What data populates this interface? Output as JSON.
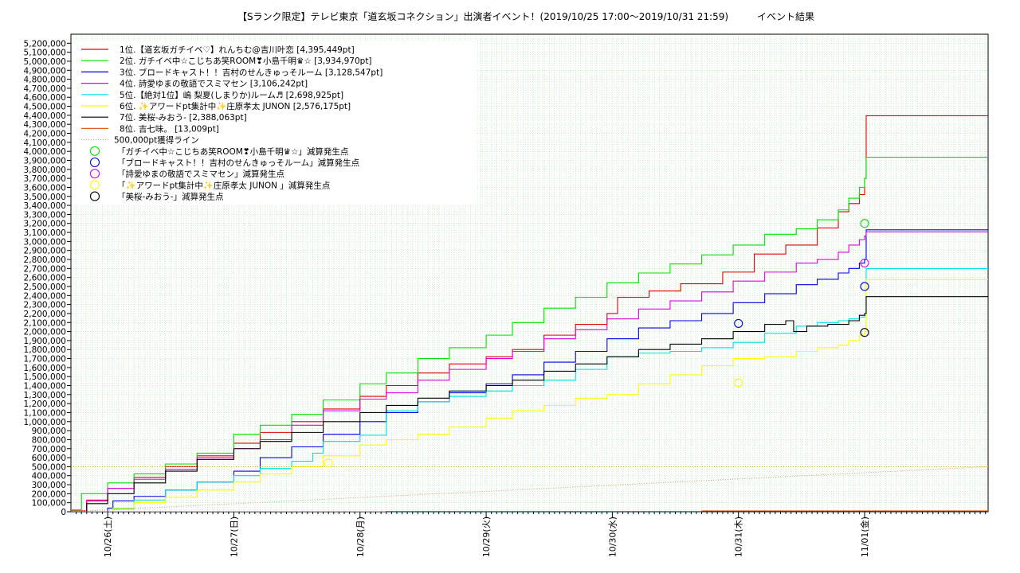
{
  "chart_data": {
    "type": "line",
    "title": "【Sランク限定】テレビ東京「道玄坂コネクション」出演者イベント！(2019/10/25 17:00～2019/10/31 21:59)　　　イベント結果",
    "xlabel": "",
    "ylabel": "",
    "x_unit": "hours since 2019/10/25 17:00",
    "xlim": [
      0,
      174.5
    ],
    "ylim": [
      0,
      5300000
    ],
    "y_ticks": [
      0,
      100000,
      200000,
      300000,
      400000,
      500000,
      600000,
      700000,
      800000,
      900000,
      1000000,
      1100000,
      1200000,
      1300000,
      1400000,
      1500000,
      1600000,
      1700000,
      1800000,
      1900000,
      2000000,
      2100000,
      2200000,
      2300000,
      2400000,
      2500000,
      2600000,
      2700000,
      2800000,
      2900000,
      3000000,
      3100000,
      3200000,
      3300000,
      3400000,
      3500000,
      3600000,
      3700000,
      3800000,
      3900000,
      4000000,
      4100000,
      4200000,
      4300000,
      4400000,
      4500000,
      4600000,
      4700000,
      4800000,
      4900000,
      5000000,
      5100000,
      5200000
    ],
    "y_tick_labels": [
      "0",
      "100,000",
      "200,000",
      "300,000",
      "400,000",
      "500,000",
      "600,000",
      "700,000",
      "800,000",
      "900,000",
      "1,000,000",
      "1,100,000",
      "1,200,000",
      "1,300,000",
      "1,400,000",
      "1,500,000",
      "1,600,000",
      "1,700,000",
      "1,800,000",
      "1,900,000",
      "2,000,000",
      "2,100,000",
      "2,200,000",
      "2,300,000",
      "2,400,000",
      "2,500,000",
      "2,600,000",
      "2,700,000",
      "2,800,000",
      "2,900,000",
      "3,000,000",
      "3,100,000",
      "3,200,000",
      "3,300,000",
      "3,400,000",
      "3,500,000",
      "3,600,000",
      "3,700,000",
      "3,800,000",
      "3,900,000",
      "4,000,000",
      "4,100,000",
      "4,200,000",
      "4,300,000",
      "4,400,000",
      "4,500,000",
      "4,600,000",
      "4,700,000",
      "4,800,000",
      "4,900,000",
      "5,000,000",
      "5,100,000",
      "5,200,000"
    ],
    "x_ticks": [
      7,
      31,
      55,
      79,
      103,
      127,
      151
    ],
    "x_tick_labels": [
      "10/26(土)",
      "10/27(日)",
      "10/28(月)",
      "10/29(火)",
      "10/30(水)",
      "10/31(木)",
      "11/01(金)"
    ],
    "grid": true,
    "legend_position": "top-left",
    "series": [
      {
        "name": "1位.【道玄坂ガチイベ♡】れんちむ@吉川叶恋 [4,395,449pt]",
        "color": "#e00000",
        "x": [
          0,
          3,
          7,
          12,
          18,
          24,
          31,
          36,
          42,
          48,
          55,
          60,
          66,
          72,
          79,
          84,
          90,
          96,
          102,
          104,
          110,
          116,
          124,
          130,
          136,
          142,
          146,
          148,
          150,
          151,
          151.3,
          174.5
        ],
        "y": [
          10000,
          120000,
          260000,
          380000,
          500000,
          620000,
          760000,
          880000,
          1000000,
          1140000,
          1280000,
          1400000,
          1540000,
          1640000,
          1720000,
          1800000,
          1960000,
          2080000,
          2200000,
          2380000,
          2450000,
          2530000,
          2660000,
          2860000,
          2960000,
          3150000,
          3330000,
          3420000,
          3520000,
          3700000,
          4395449,
          4395449
        ]
      },
      {
        "name": "2位. ガチイベ中☆こじちあ笑ROOM❣小島千明♛☆ [3,934,970pt]",
        "color": "#00e000",
        "x": [
          0,
          2,
          7,
          12,
          18,
          24,
          31,
          36,
          42,
          48,
          55,
          60,
          66,
          72,
          79,
          84,
          90,
          96,
          102,
          108,
          114,
          120,
          126,
          132,
          138,
          142,
          146,
          148,
          150,
          151,
          151.3,
          174.5
        ],
        "y": [
          20000,
          200000,
          320000,
          420000,
          530000,
          650000,
          860000,
          960000,
          1080000,
          1240000,
          1420000,
          1540000,
          1700000,
          1820000,
          1960000,
          2100000,
          2260000,
          2380000,
          2540000,
          2650000,
          2750000,
          2850000,
          2960000,
          3080000,
          3140000,
          3240000,
          3350000,
          3480000,
          3600000,
          3700000,
          3934970,
          3934970
        ]
      },
      {
        "name": "3位. ブロードキャスト！！吉村のせんきゅっそルーム [3,128,547pt]",
        "color": "#0000e0",
        "x": [
          0,
          7,
          8,
          12,
          18,
          24,
          31,
          36,
          42,
          48,
          55,
          60,
          66,
          72,
          79,
          84,
          90,
          96,
          102,
          108,
          114,
          120,
          126,
          132,
          138,
          142,
          146,
          148,
          150,
          151,
          151.3,
          174.5
        ],
        "y": [
          0,
          40000,
          120000,
          170000,
          240000,
          330000,
          450000,
          600000,
          720000,
          860000,
          1000000,
          1100000,
          1220000,
          1320000,
          1420000,
          1520000,
          1660000,
          1780000,
          1920000,
          2040000,
          2120000,
          2200000,
          2320000,
          2420000,
          2520000,
          2580000,
          2650000,
          2700000,
          2760000,
          2800000,
          3128547,
          3128547
        ]
      },
      {
        "name": "4位. 詩愛ゆまの敬語でスミマセン [3,106,242pt]",
        "color": "#e000e0",
        "x": [
          0,
          3,
          7,
          12,
          18,
          24,
          31,
          36,
          42,
          48,
          55,
          60,
          66,
          72,
          79,
          84,
          90,
          96,
          102,
          108,
          114,
          120,
          126,
          132,
          138,
          142,
          146,
          148,
          150,
          151,
          151.3,
          174.5
        ],
        "y": [
          0,
          130000,
          260000,
          360000,
          470000,
          600000,
          700000,
          800000,
          960000,
          1120000,
          1250000,
          1320000,
          1460000,
          1580000,
          1700000,
          1780000,
          1920000,
          2020000,
          2140000,
          2250000,
          2340000,
          2440000,
          2560000,
          2660000,
          2760000,
          2800000,
          2880000,
          2960000,
          3020000,
          3060000,
          3106242,
          3106242
        ]
      },
      {
        "name": "5位.【絶対1位】嶋 梨夏(しまりか)ルーム♬ [2,698,925pt]",
        "color": "#00e0e0",
        "x": [
          0,
          8,
          12,
          18,
          24,
          31,
          36,
          42,
          46,
          48,
          55,
          60,
          66,
          72,
          79,
          84,
          90,
          96,
          102,
          108,
          114,
          120,
          126,
          132,
          138,
          142,
          146,
          148,
          150,
          151,
          151.3,
          174.5
        ],
        "y": [
          0,
          30000,
          130000,
          240000,
          330000,
          400000,
          480000,
          560000,
          650000,
          780000,
          850000,
          1120000,
          1220000,
          1280000,
          1340000,
          1400000,
          1460000,
          1580000,
          1720000,
          1760000,
          1780000,
          1820000,
          1880000,
          1980000,
          2060000,
          2100000,
          2120000,
          2140000,
          2160000,
          2180000,
          2698925,
          2698925
        ]
      },
      {
        "name": "6位. ✨アワードpt集計中✨庄原孝太 JUNON [2,576,175pt]",
        "color": "#ffff00",
        "x": [
          0,
          8,
          12,
          18,
          24,
          31,
          36,
          42,
          48,
          55,
          60,
          66,
          72,
          79,
          84,
          90,
          96,
          102,
          108,
          114,
          120,
          126,
          132,
          138,
          142,
          146,
          148,
          150,
          151,
          151.3,
          174.5
        ],
        "y": [
          0,
          40000,
          100000,
          160000,
          240000,
          330000,
          420000,
          500000,
          620000,
          740000,
          800000,
          860000,
          940000,
          1040000,
          1120000,
          1180000,
          1260000,
          1300000,
          1420000,
          1520000,
          1620000,
          1700000,
          1720000,
          1780000,
          1820000,
          1850000,
          1900000,
          1960000,
          2000000,
          2576175,
          2576175
        ]
      },
      {
        "name": "7位. 美桜-みおう- [2,388,063pt]",
        "color": "#000000",
        "x": [
          0,
          3,
          7,
          12,
          18,
          24,
          31,
          36,
          42,
          48,
          55,
          60,
          66,
          72,
          79,
          84,
          90,
          96,
          102,
          108,
          114,
          120,
          126,
          132,
          136,
          137.5,
          140,
          144,
          148,
          150,
          151,
          151.3,
          174.5
        ],
        "y": [
          0,
          90000,
          200000,
          320000,
          450000,
          580000,
          700000,
          780000,
          880000,
          1000000,
          1100000,
          1180000,
          1260000,
          1340000,
          1400000,
          1460000,
          1560000,
          1640000,
          1720000,
          1800000,
          1860000,
          1920000,
          2000000,
          2080000,
          2120000,
          2000000,
          2060000,
          2080000,
          2120000,
          2180000,
          2200000,
          2388063,
          2388063
        ]
      },
      {
        "name": "8位. 吉七味。 [13,009pt]",
        "color": "#e06020",
        "x": [
          0,
          60,
          120,
          174.5
        ],
        "y": [
          0,
          4000,
          9000,
          13009
        ]
      },
      {
        "name": "500,000pt獲得ライン",
        "color": "#d0a080",
        "dotted": true,
        "x": [
          0,
          174.5
        ],
        "y": [
          0,
          500000
        ]
      }
    ],
    "reference_lines": [
      {
        "name": "500,000pt",
        "y": 500000,
        "color": "#e0a000",
        "dotted": true
      }
    ],
    "decrement_markers": [
      {
        "name": "「ガチイベ中☆こじちあ笑ROOM❣小島千明♛☆」減算発生点",
        "color": "#00e000",
        "points": [
          [
            151,
            3200000
          ]
        ]
      },
      {
        "name": "「ブロードキャスト！！吉村のせんきゅっそルーム」減算発生点",
        "color": "#0000e0",
        "points": [
          [
            127,
            2090000
          ],
          [
            151,
            2500000
          ]
        ]
      },
      {
        "name": "「詩愛ゆまの敬語でスミマセン」減算発生点",
        "color": "#e000e0",
        "points": [
          [
            151,
            2760000
          ]
        ]
      },
      {
        "name": "「✨アワードpt集計中✨庄原孝太 JUNON 」減算発生点",
        "color": "#ffff00",
        "points": [
          [
            49,
            540000
          ],
          [
            127,
            1430000
          ]
        ]
      },
      {
        "name": "「美桜-みおう-」減算発生点",
        "color": "#000000",
        "points": [
          [
            151,
            1990000
          ]
        ]
      }
    ]
  }
}
